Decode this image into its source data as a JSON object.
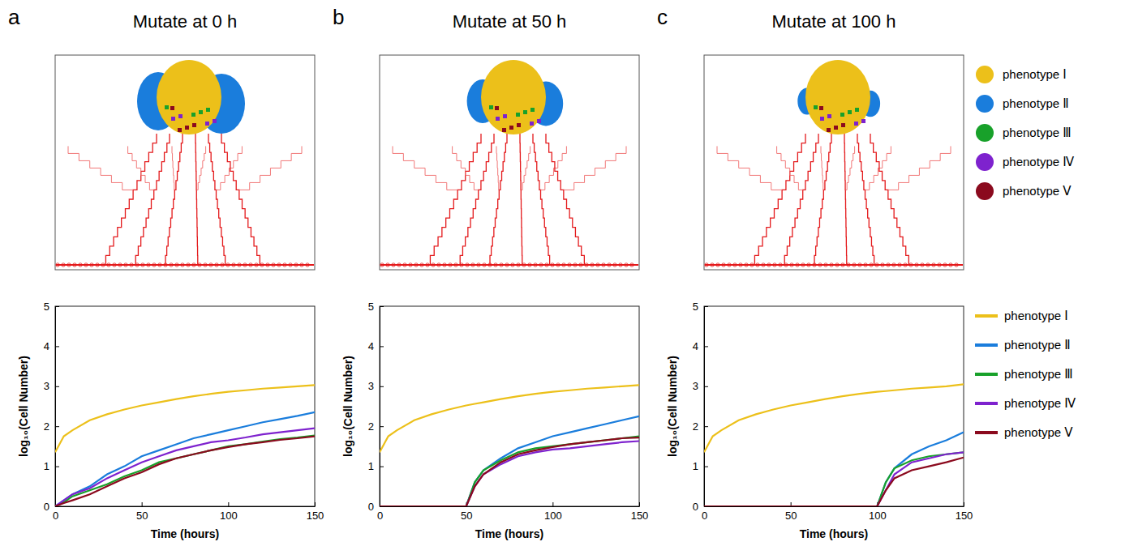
{
  "chart_data": [
    {
      "type": "line",
      "panel_label": "a",
      "title": "Mutate at 0 h",
      "x_label": "Time (hours)",
      "y_label": "log₁₀(Cell Number)",
      "xlim": [
        0,
        150
      ],
      "xticks": [
        0,
        50,
        100,
        150
      ],
      "ylim": [
        0,
        5
      ],
      "yticks": [
        0,
        1,
        2,
        3,
        4,
        5
      ],
      "x": [
        0,
        5,
        10,
        20,
        30,
        40,
        50,
        60,
        70,
        80,
        90,
        100,
        110,
        120,
        130,
        140,
        150
      ],
      "series": [
        {
          "name": "phenotype Ⅰ",
          "color": "#ecc01a",
          "values": [
            1.35,
            1.75,
            1.9,
            2.15,
            2.3,
            2.42,
            2.52,
            2.6,
            2.68,
            2.75,
            2.81,
            2.86,
            2.9,
            2.94,
            2.97,
            3.0,
            3.03
          ]
        },
        {
          "name": "phenotype Ⅱ",
          "color": "#1a7ddc",
          "values": [
            0,
            0.15,
            0.3,
            0.5,
            0.8,
            1.0,
            1.25,
            1.4,
            1.55,
            1.7,
            1.8,
            1.9,
            2.0,
            2.1,
            2.18,
            2.26,
            2.35
          ]
        },
        {
          "name": "phenotype Ⅲ",
          "color": "#18a12a",
          "values": [
            0,
            0.1,
            0.25,
            0.4,
            0.55,
            0.75,
            0.9,
            1.1,
            1.2,
            1.3,
            1.4,
            1.5,
            1.55,
            1.62,
            1.68,
            1.72,
            1.77
          ]
        },
        {
          "name": "phenotype Ⅳ",
          "color": "#7e22ce",
          "values": [
            0,
            0.15,
            0.3,
            0.45,
            0.7,
            0.9,
            1.1,
            1.25,
            1.4,
            1.5,
            1.6,
            1.65,
            1.72,
            1.8,
            1.85,
            1.9,
            1.95
          ]
        },
        {
          "name": "phenotype Ⅴ",
          "color": "#8b0a1e",
          "values": [
            0,
            0.08,
            0.15,
            0.3,
            0.5,
            0.7,
            0.85,
            1.05,
            1.2,
            1.3,
            1.4,
            1.48,
            1.55,
            1.6,
            1.66,
            1.7,
            1.75
          ]
        }
      ]
    },
    {
      "type": "line",
      "panel_label": "b",
      "title": "Mutate at 50 h",
      "x_label": "Time (hours)",
      "y_label": "log₁₀(Cell Number)",
      "xlim": [
        0,
        150
      ],
      "xticks": [
        0,
        50,
        100,
        150
      ],
      "ylim": [
        0,
        5
      ],
      "yticks": [
        0,
        1,
        2,
        3,
        4,
        5
      ],
      "x": [
        0,
        5,
        10,
        20,
        30,
        40,
        50,
        55,
        60,
        70,
        80,
        90,
        100,
        110,
        120,
        130,
        140,
        150
      ],
      "series": [
        {
          "name": "phenotype Ⅰ",
          "color": "#ecc01a",
          "values": [
            1.35,
            1.75,
            1.9,
            2.15,
            2.3,
            2.42,
            2.52,
            2.56,
            2.6,
            2.68,
            2.75,
            2.81,
            2.86,
            2.9,
            2.94,
            2.97,
            3.0,
            3.03
          ]
        },
        {
          "name": "phenotype Ⅱ",
          "color": "#1a7ddc",
          "values": [
            0,
            0,
            0,
            0,
            0,
            0,
            0,
            0.6,
            0.9,
            1.2,
            1.45,
            1.6,
            1.75,
            1.85,
            1.95,
            2.05,
            2.15,
            2.25
          ]
        },
        {
          "name": "phenotype Ⅲ",
          "color": "#18a12a",
          "values": [
            0,
            0,
            0,
            0,
            0,
            0,
            0,
            0.6,
            0.9,
            1.15,
            1.35,
            1.45,
            1.5,
            1.55,
            1.6,
            1.65,
            1.7,
            1.75
          ]
        },
        {
          "name": "phenotype Ⅳ",
          "color": "#7e22ce",
          "values": [
            0,
            0,
            0,
            0,
            0,
            0,
            0,
            0.5,
            0.8,
            1.05,
            1.25,
            1.35,
            1.42,
            1.45,
            1.5,
            1.55,
            1.6,
            1.63
          ]
        },
        {
          "name": "phenotype Ⅴ",
          "color": "#8b0a1e",
          "values": [
            0,
            0,
            0,
            0,
            0,
            0,
            0,
            0.5,
            0.8,
            1.1,
            1.3,
            1.4,
            1.48,
            1.55,
            1.6,
            1.65,
            1.7,
            1.72
          ]
        }
      ]
    },
    {
      "type": "line",
      "panel_label": "c",
      "title": "Mutate at 100 h",
      "x_label": "Time (hours)",
      "y_label": "log₁₀(Cell Number)",
      "xlim": [
        0,
        150
      ],
      "xticks": [
        0,
        50,
        100,
        150
      ],
      "ylim": [
        0,
        5
      ],
      "yticks": [
        0,
        1,
        2,
        3,
        4,
        5
      ],
      "legend": "right",
      "x": [
        0,
        5,
        10,
        20,
        30,
        40,
        50,
        60,
        70,
        80,
        90,
        100,
        105,
        110,
        120,
        130,
        140,
        150
      ],
      "series": [
        {
          "name": "phenotype Ⅰ",
          "color": "#ecc01a",
          "values": [
            1.35,
            1.75,
            1.9,
            2.15,
            2.3,
            2.42,
            2.52,
            2.6,
            2.68,
            2.75,
            2.81,
            2.86,
            2.88,
            2.9,
            2.94,
            2.97,
            3.0,
            3.05
          ]
        },
        {
          "name": "phenotype Ⅱ",
          "color": "#1a7ddc",
          "values": [
            0,
            0,
            0,
            0,
            0,
            0,
            0,
            0,
            0,
            0,
            0,
            0,
            0.6,
            0.95,
            1.3,
            1.5,
            1.65,
            1.85
          ]
        },
        {
          "name": "phenotype Ⅲ",
          "color": "#18a12a",
          "values": [
            0,
            0,
            0,
            0,
            0,
            0,
            0,
            0,
            0,
            0,
            0,
            0,
            0.6,
            0.95,
            1.15,
            1.25,
            1.3,
            1.35
          ]
        },
        {
          "name": "phenotype Ⅳ",
          "color": "#7e22ce",
          "values": [
            0,
            0,
            0,
            0,
            0,
            0,
            0,
            0,
            0,
            0,
            0,
            0,
            0.4,
            0.8,
            1.1,
            1.2,
            1.3,
            1.35
          ]
        },
        {
          "name": "phenotype Ⅴ",
          "color": "#8b0a1e",
          "values": [
            0,
            0,
            0,
            0,
            0,
            0,
            0,
            0,
            0,
            0,
            0,
            0,
            0.4,
            0.7,
            0.9,
            1.0,
            1.1,
            1.22
          ]
        }
      ]
    }
  ]
}
